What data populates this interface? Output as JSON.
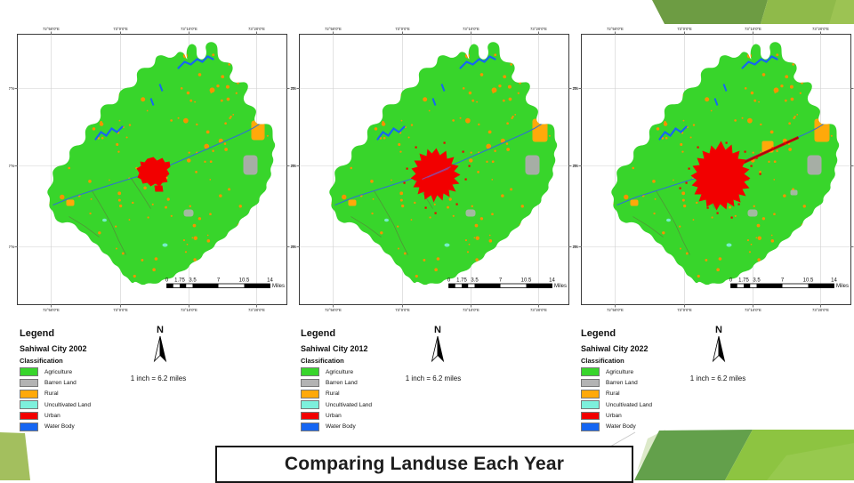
{
  "slide": {
    "title": "Comparing Landuse Each Year"
  },
  "map": {
    "north_label": "N",
    "scale_text": "1 inch = 6.2 miles",
    "lon_labels": [
      "72°50'0\"E",
      "73°0'0\"E",
      "73°10'0\"E",
      "73°20'0\"E"
    ],
    "lat_labels": [
      "30°50'0\"N",
      "30°40'0\"N",
      "30°30'0\"N"
    ],
    "scale_bar": {
      "ticks": [
        "0",
        "1.75",
        "3.5",
        "7",
        "10.5",
        "14"
      ],
      "unit": "Miles"
    }
  },
  "legend": {
    "heading": "Legend",
    "classification_label": "Classification",
    "items": [
      {
        "label": "Agriculture",
        "color": "#38D52B"
      },
      {
        "label": "Barren Land",
        "color": "#B3B3B3"
      },
      {
        "label": "Rural",
        "color": "#FFA90A"
      },
      {
        "label": "Uncultivated Land",
        "color": "#7DF0DC"
      },
      {
        "label": "Urban",
        "color": "#F20000"
      },
      {
        "label": "Water Body",
        "color": "#1666F2"
      }
    ]
  },
  "panels": [
    {
      "year": "2002",
      "legend_title": "Sahiwal City 2002"
    },
    {
      "year": "2012",
      "legend_title": "Sahiwal City 2012"
    },
    {
      "year": "2022",
      "legend_title": "Sahiwal City 2022"
    }
  ],
  "colors": {
    "agriculture": "#38D52B",
    "urban": "#F20000",
    "rural": "#FFA90A",
    "rural_dot": "#F59300",
    "barren": "#ACACAC",
    "uncultivated": "#7DF0DC",
    "water": "#1666F2",
    "canal": "#2F6FD6",
    "road": "#55893A",
    "railway": "#8B4DA8",
    "corridor_dark": "#7A1020",
    "grid": "#CFCFCF",
    "frame": "#3C3C3C",
    "decor_top_dark": "#6D9C43",
    "decor_top_bright": "#8FBA4A",
    "decor_top_light": "#9CC353",
    "decor_mid_green": "#63A04B",
    "decor_bright_green": "#8DC441",
    "decor_bright2": "#97C94E",
    "decor_pale_green": "#DCE9C9",
    "decor_corner_left": "#A3BF5E"
  }
}
